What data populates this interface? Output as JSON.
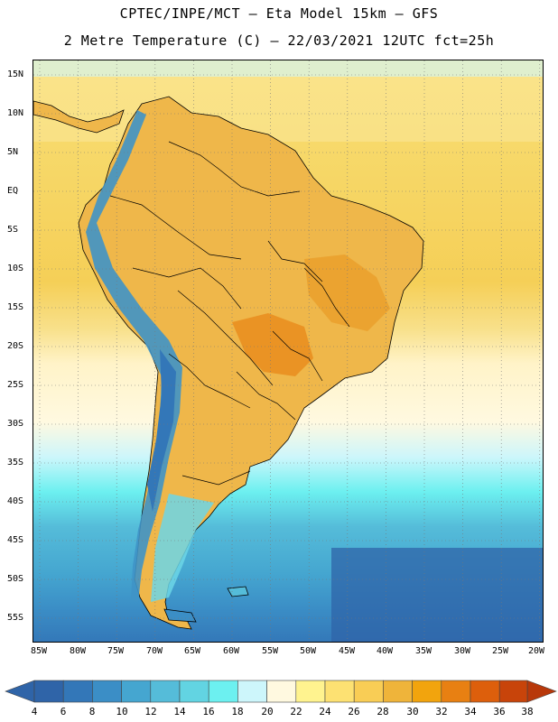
{
  "title_line1": "CPTEC/INPE/MCT –  Eta Model 15km – GFS",
  "title_line2": "2 Metre Temperature (C) – 22/03/2021 12UTC fct=25h",
  "latitude_labels": [
    "15N",
    "10N",
    "5N",
    "EQ",
    "5S",
    "10S",
    "15S",
    "20S",
    "25S",
    "30S",
    "35S",
    "40S",
    "45S",
    "50S",
    "55S"
  ],
  "longitude_labels": [
    "85W",
    "80W",
    "75W",
    "70W",
    "65W",
    "60W",
    "55W",
    "50W",
    "45W",
    "40W",
    "35W",
    "30W",
    "25W",
    "20W"
  ],
  "colorbar": {
    "ticks": [
      "4",
      "6",
      "8",
      "10",
      "12",
      "14",
      "16",
      "18",
      "20",
      "22",
      "24",
      "26",
      "28",
      "30",
      "32",
      "34",
      "36",
      "38"
    ],
    "low_extend_color": "#2f64a8",
    "high_extend_color": "#b8380a",
    "colors": [
      "#2f64a8",
      "#3377b8",
      "#3b8ec6",
      "#45a6d0",
      "#55bcd9",
      "#62d4e2",
      "#6cf0f0",
      "#cdf6fb",
      "#fff9e0",
      "#fff38f",
      "#fde172",
      "#f9cd55",
      "#efb43a",
      "#f2a40d",
      "#e88012",
      "#dd5f0c",
      "#c8440a"
    ]
  },
  "map": {
    "ocean_dominant_color": "#f5d35d",
    "continent_fill_color": "#efb74a",
    "andes_color": "#3f93c6"
  }
}
